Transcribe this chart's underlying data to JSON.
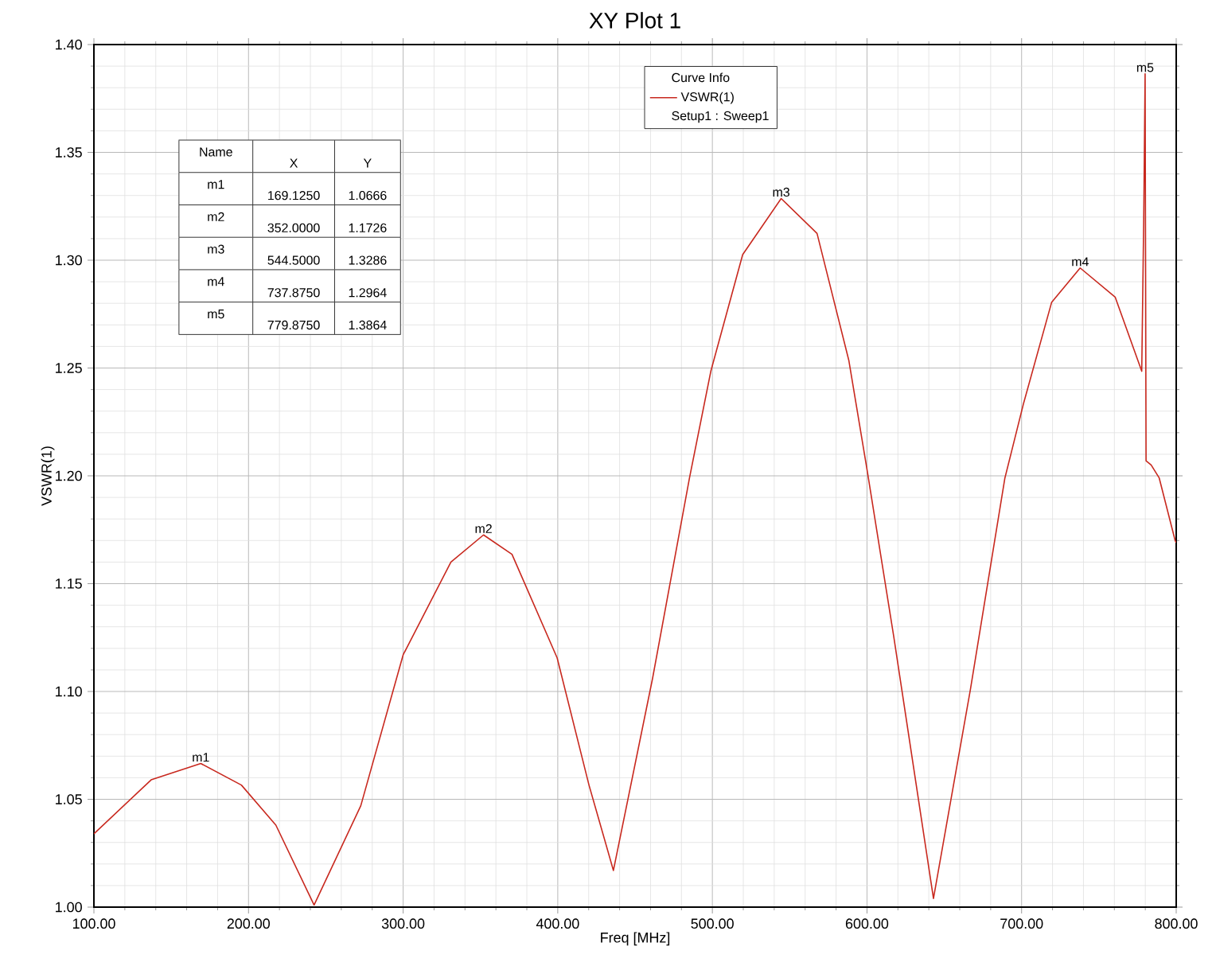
{
  "chart_data": {
    "type": "line",
    "title": "XY Plot 1",
    "xlabel": "Freq [MHz]",
    "ylabel": "VSWR(1)",
    "legend_title": "Curve Info",
    "series": [
      {
        "name": "VSWR(1)",
        "color": "#c8281e",
        "x": [
          100,
          137,
          169.125,
          195.4,
          217.7,
          242.4,
          272.6,
          300,
          330.9,
          352,
          370.4,
          399.6,
          420.2,
          436,
          461.3,
          485.2,
          499,
          519.6,
          544.5,
          567.7,
          588.3,
          600.3,
          617.3,
          643,
          666.9,
          689.2,
          701.3,
          719.4,
          737.875,
          760.5,
          777.7,
          779,
          779.875,
          780.5,
          783.8,
          789,
          799.3,
          800
        ],
        "values": [
          1.034,
          1.059,
          1.0666,
          1.0566,
          1.038,
          1.001,
          1.047,
          1.117,
          1.16,
          1.1726,
          1.1636,
          1.1156,
          1.0566,
          1.017,
          1.106,
          1.199,
          1.2485,
          1.3026,
          1.3286,
          1.3124,
          1.2534,
          1.2017,
          1.1255,
          1.004,
          1.101,
          1.199,
          1.2337,
          1.2804,
          1.2964,
          1.2829,
          1.2485,
          1.32,
          1.3864,
          1.207,
          1.205,
          1.199,
          1.17,
          1.169
        ]
      }
    ],
    "xlim": [
      100,
      800
    ],
    "ylim": [
      1.0,
      1.4
    ],
    "xticks": [
      {
        "value": 100,
        "label": "100.00"
      },
      {
        "value": 200,
        "label": "200.00"
      },
      {
        "value": 300,
        "label": "300.00"
      },
      {
        "value": 400,
        "label": "400.00"
      },
      {
        "value": 500,
        "label": "500.00"
      },
      {
        "value": 600,
        "label": "600.00"
      },
      {
        "value": 700,
        "label": "700.00"
      },
      {
        "value": 800,
        "label": "800.00"
      }
    ],
    "yticks": [
      {
        "value": 1.0,
        "label": "1.00"
      },
      {
        "value": 1.05,
        "label": "1.05"
      },
      {
        "value": 1.1,
        "label": "1.10"
      },
      {
        "value": 1.15,
        "label": "1.15"
      },
      {
        "value": 1.2,
        "label": "1.20"
      },
      {
        "value": 1.25,
        "label": "1.25"
      },
      {
        "value": 1.3,
        "label": "1.30"
      },
      {
        "value": 1.35,
        "label": "1.35"
      },
      {
        "value": 1.4,
        "label": "1.40"
      }
    ],
    "grid": true,
    "legend": "top",
    "marker": "none",
    "line_style": "solid",
    "annotations": [
      {
        "text": "m1",
        "x": 169.125,
        "y": 1.0666
      },
      {
        "text": "m2",
        "x": 352,
        "y": 1.1726
      },
      {
        "text": "m3",
        "x": 544.5,
        "y": 1.3286
      },
      {
        "text": "m4",
        "x": 737.875,
        "y": 1.2964
      },
      {
        "text": "m5",
        "x": 779.875,
        "y": 1.3864
      },
      "Setup1 : Sweep1",
      "Name",
      "X",
      "Y",
      "m1",
      "169.1250",
      "1.0666",
      "m2",
      "352.0000",
      "1.1726",
      "m3",
      "544.5000",
      "1.3286",
      "m4",
      "737.8750",
      "1.2964",
      "m5",
      "779.8750",
      "1.3864"
    ]
  }
}
